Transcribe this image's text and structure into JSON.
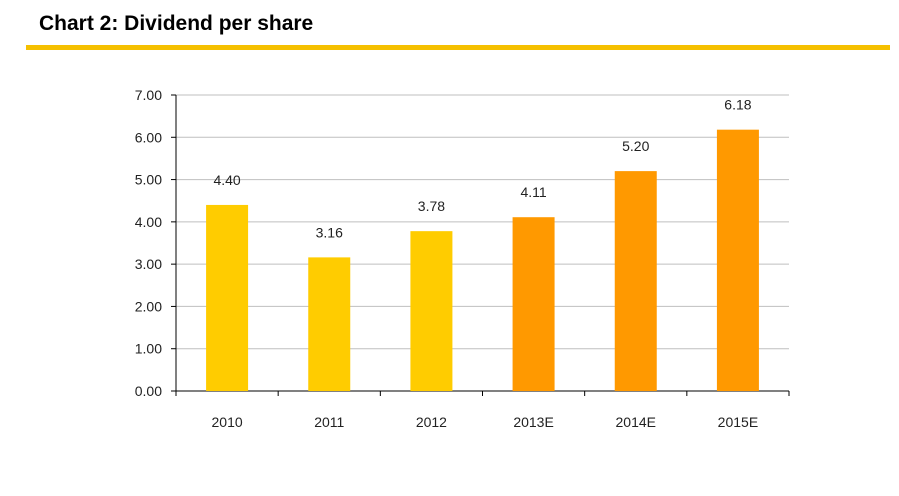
{
  "header": {
    "title": "Chart 2: Dividend per share"
  },
  "colors": {
    "rule": "#f5c000",
    "actual_bar": "#ffcc00",
    "estimate_bar": "#ff9900",
    "grid": "#bfbfbf",
    "axis": "#000000"
  },
  "chart_data": {
    "type": "bar",
    "title": "Chart 2: Dividend per share",
    "xlabel": "",
    "ylabel": "",
    "categories": [
      "2010",
      "2011",
      "2012",
      "2013E",
      "2014E",
      "2015E"
    ],
    "values": [
      4.4,
      3.16,
      3.78,
      4.11,
      5.2,
      6.18
    ],
    "data_labels": [
      "4.40",
      "3.16",
      "3.78",
      "4.11",
      "5.20",
      "6.18"
    ],
    "bar_colors": [
      "#ffcc00",
      "#ffcc00",
      "#ffcc00",
      "#ff9900",
      "#ff9900",
      "#ff9900"
    ],
    "ylim": [
      0,
      7
    ],
    "yticks": [
      "0.00",
      "1.00",
      "2.00",
      "3.00",
      "4.00",
      "5.00",
      "6.00",
      "7.00"
    ],
    "grid": true,
    "legend": "none"
  }
}
